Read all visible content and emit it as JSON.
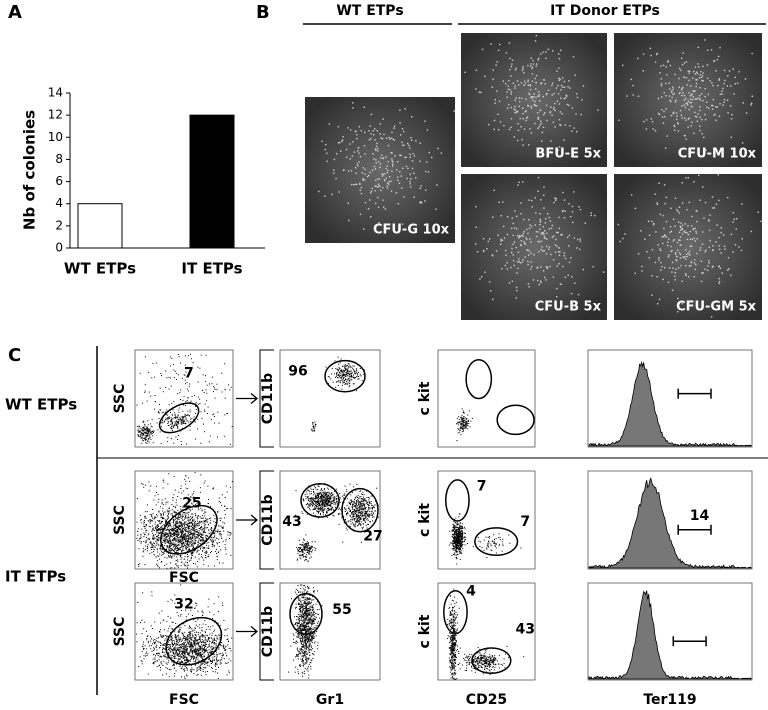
{
  "panel_labels": [
    "A",
    "B",
    "C"
  ],
  "chart_data": {
    "type": "bar",
    "ylabel": "Nb of colonies",
    "categories": [
      "WT ETPs",
      "IT ETPs"
    ],
    "values": [
      4,
      12
    ],
    "colors": [
      "#ffffff",
      "#000000"
    ],
    "ylim": [
      0,
      14
    ],
    "yticks": [
      0,
      2,
      4,
      6,
      8,
      10,
      12,
      14
    ]
  },
  "micrographs": {
    "headers": [
      "WT ETPs",
      "IT Donor ETPs"
    ],
    "labels": [
      "CFU-G 10x",
      "BFU-E 5x",
      "CFU-M 10x",
      "CFU-B 5x",
      "CFU-GM 5x"
    ]
  },
  "flow": {
    "row_labels": [
      "WT ETPs",
      "IT ETPs"
    ],
    "x_labels": [
      "FSC",
      "Gr1",
      "CD25",
      "Ter119"
    ],
    "rows": [
      {
        "plots": [
          {
            "y_label": "SSC",
            "gates": [
              7
            ]
          },
          {
            "y_label": "CD11b",
            "gates": [
              96
            ]
          },
          {
            "y_label": "c kit"
          },
          {}
        ]
      },
      {
        "plots": [
          {
            "y_label": "SSC",
            "x_label": "FSC",
            "gates": [
              25
            ]
          },
          {
            "y_label": "CD11b",
            "gates": [
              43,
              27
            ]
          },
          {
            "y_label": "c kit",
            "gates": [
              7,
              7
            ]
          },
          {
            "gates": [
              14
            ]
          }
        ]
      },
      {
        "plots": [
          {
            "y_label": "SSC",
            "gates": [
              32
            ]
          },
          {
            "y_label": "CD11b",
            "gates": [
              55
            ]
          },
          {
            "y_label": "c kit",
            "gates": [
              4,
              43
            ]
          },
          {}
        ]
      }
    ]
  }
}
